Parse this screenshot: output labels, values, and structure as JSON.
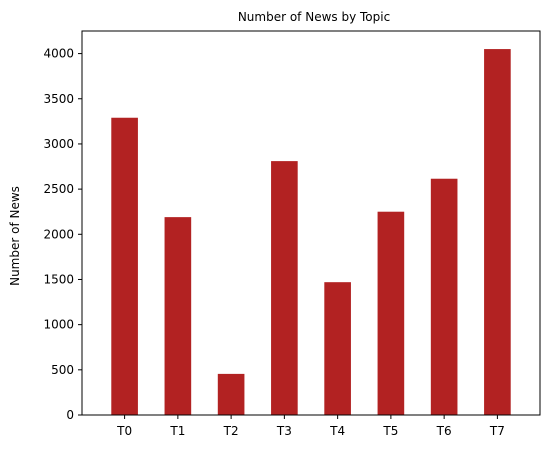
{
  "chart_data": {
    "type": "bar",
    "title": "Number of News by  Topic",
    "xlabel": "",
    "ylabel": "Number of News",
    "categories": [
      "T0",
      "T1",
      "T2",
      "T3",
      "T4",
      "T5",
      "T6",
      "T7"
    ],
    "values": [
      3290,
      2190,
      455,
      2810,
      1470,
      2250,
      2615,
      4050
    ],
    "ylim": [
      0,
      4250
    ],
    "yticks": [
      0,
      500,
      1000,
      1500,
      2000,
      2500,
      3000,
      3500,
      4000
    ],
    "grid": false,
    "legend": "none",
    "bar_color": "#b22222",
    "axis_color": "#000000",
    "background": "#ffffff"
  }
}
